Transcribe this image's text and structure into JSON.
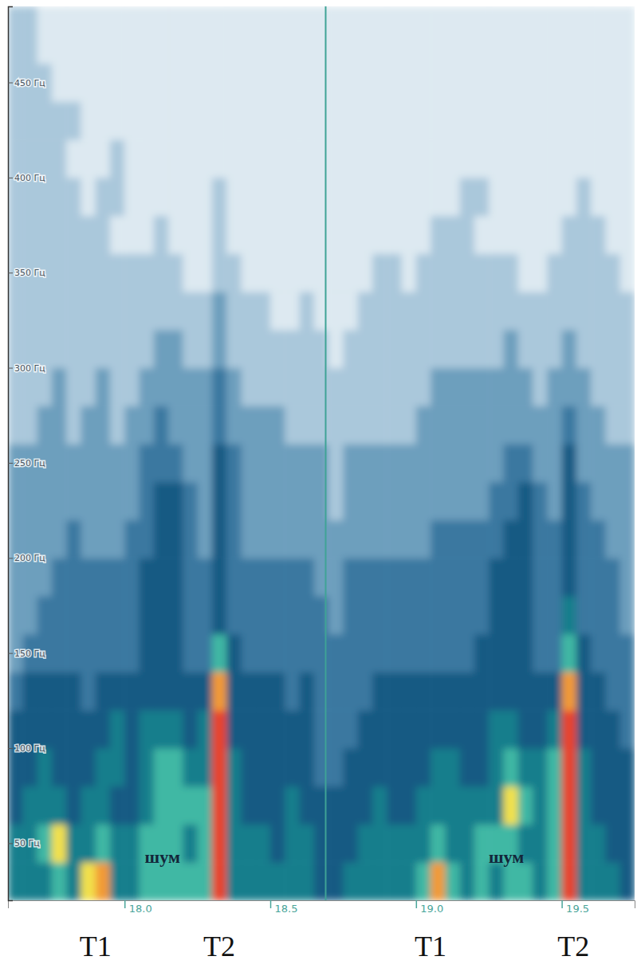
{
  "chart_data": {
    "type": "heatmap",
    "xlim": [
      17.6,
      19.75
    ],
    "ylim": [
      20,
      490
    ],
    "xticks": [
      {
        "value": 18,
        "label": "18.0"
      },
      {
        "value": 18.5,
        "label": "18.5"
      },
      {
        "value": 19,
        "label": "19.0"
      },
      {
        "value": 19.5,
        "label": "19.5"
      }
    ],
    "yticks": [
      {
        "value": 50,
        "label": "50 Гц"
      },
      {
        "value": 100,
        "label": "100 Гц"
      },
      {
        "value": 150,
        "label": "150 Гц"
      },
      {
        "value": 200,
        "label": "200 Гц"
      },
      {
        "value": 250,
        "label": "250 Гц"
      },
      {
        "value": 300,
        "label": "300 Гц"
      },
      {
        "value": 350,
        "label": "350 Гц"
      },
      {
        "value": 400,
        "label": "400 Гц"
      },
      {
        "value": 450,
        "label": "450 Гц"
      }
    ],
    "zlim": [
      0,
      10
    ],
    "x_edges": [
      17.6,
      17.65,
      17.7,
      17.75,
      17.8,
      17.85,
      17.9,
      17.95,
      18.0,
      18.05,
      18.1,
      18.15,
      18.2,
      18.25,
      18.3,
      18.35,
      18.4,
      18.45,
      18.5,
      18.55,
      18.6,
      18.65,
      18.7,
      18.75,
      18.8,
      18.85,
      18.9,
      18.95,
      19.0,
      19.05,
      19.1,
      19.15,
      19.2,
      19.25,
      19.3,
      19.35,
      19.4,
      19.45,
      19.5,
      19.55,
      19.6,
      19.65,
      19.7,
      19.75
    ],
    "y_edges": [
      20,
      40,
      60,
      80,
      100,
      120,
      140,
      160,
      180,
      200,
      220,
      240,
      260,
      280,
      300,
      320,
      340,
      360,
      380,
      400,
      420,
      440,
      460,
      480,
      490
    ],
    "z": [
      [
        6,
        6,
        6,
        7,
        6,
        8,
        9,
        6,
        6,
        7,
        7,
        7,
        7,
        7,
        10,
        6,
        6,
        6,
        6,
        6,
        6,
        5,
        5,
        6,
        6,
        6,
        6,
        6,
        7,
        9,
        7,
        6,
        7,
        6,
        7,
        7,
        6,
        7,
        10,
        6,
        6,
        6,
        5
      ],
      [
        6,
        6,
        7,
        8,
        6,
        6,
        7,
        6,
        6,
        7,
        7,
        7,
        6,
        7,
        10,
        6,
        6,
        6,
        5,
        6,
        6,
        5,
        5,
        5,
        6,
        6,
        6,
        6,
        6,
        7,
        6,
        6,
        7,
        7,
        7,
        6,
        6,
        7,
        10,
        6,
        6,
        5,
        5
      ],
      [
        5,
        6,
        6,
        6,
        5,
        6,
        6,
        5,
        5,
        6,
        7,
        7,
        7,
        7,
        10,
        6,
        5,
        5,
        5,
        6,
        5,
        5,
        5,
        5,
        5,
        6,
        5,
        5,
        6,
        6,
        6,
        6,
        6,
        6,
        8,
        7,
        6,
        7,
        10,
        6,
        5,
        5,
        5
      ],
      [
        5,
        5,
        6,
        5,
        5,
        5,
        6,
        6,
        5,
        6,
        7,
        7,
        6,
        6,
        10,
        6,
        5,
        5,
        5,
        5,
        5,
        4,
        4,
        5,
        5,
        5,
        5,
        5,
        5,
        6,
        6,
        5,
        5,
        6,
        7,
        6,
        6,
        7,
        10,
        6,
        5,
        5,
        5
      ],
      [
        5,
        5,
        5,
        5,
        5,
        5,
        5,
        6,
        5,
        6,
        6,
        6,
        5,
        6,
        10,
        5,
        5,
        5,
        5,
        5,
        5,
        4,
        4,
        4,
        5,
        5,
        5,
        5,
        5,
        5,
        5,
        5,
        5,
        6,
        6,
        5,
        5,
        6,
        10,
        5,
        5,
        5,
        4
      ],
      [
        4,
        5,
        5,
        5,
        5,
        4,
        5,
        5,
        5,
        5,
        5,
        5,
        5,
        5,
        9,
        5,
        5,
        5,
        5,
        4,
        5,
        4,
        4,
        4,
        4,
        5,
        5,
        5,
        5,
        5,
        5,
        5,
        5,
        5,
        5,
        5,
        5,
        5,
        9,
        5,
        5,
        4,
        4
      ],
      [
        3,
        4,
        4,
        4,
        4,
        4,
        4,
        4,
        4,
        5,
        5,
        5,
        4,
        4,
        7,
        5,
        4,
        4,
        4,
        4,
        4,
        4,
        4,
        4,
        4,
        4,
        4,
        4,
        4,
        4,
        4,
        4,
        5,
        5,
        5,
        5,
        4,
        4,
        7,
        5,
        4,
        4,
        4
      ],
      [
        3,
        3,
        4,
        4,
        4,
        4,
        4,
        4,
        4,
        5,
        5,
        5,
        4,
        4,
        5,
        4,
        4,
        4,
        4,
        4,
        4,
        4,
        3,
        4,
        4,
        4,
        4,
        4,
        4,
        4,
        4,
        4,
        4,
        5,
        5,
        5,
        4,
        4,
        6,
        4,
        4,
        4,
        3
      ],
      [
        3,
        3,
        3,
        4,
        4,
        4,
        4,
        4,
        4,
        5,
        5,
        5,
        4,
        4,
        5,
        4,
        4,
        4,
        4,
        4,
        4,
        3,
        3,
        4,
        4,
        4,
        4,
        4,
        4,
        4,
        4,
        4,
        4,
        5,
        5,
        5,
        4,
        4,
        5,
        4,
        4,
        4,
        3
      ],
      [
        3,
        3,
        3,
        3,
        4,
        3,
        3,
        3,
        4,
        4,
        5,
        5,
        4,
        3,
        5,
        4,
        3,
        3,
        3,
        3,
        3,
        3,
        3,
        3,
        3,
        3,
        3,
        3,
        3,
        4,
        4,
        4,
        4,
        4,
        5,
        5,
        4,
        4,
        5,
        4,
        4,
        3,
        3
      ],
      [
        3,
        3,
        3,
        3,
        3,
        3,
        3,
        3,
        3,
        4,
        5,
        5,
        4,
        3,
        5,
        4,
        3,
        3,
        3,
        3,
        3,
        3,
        2,
        3,
        3,
        3,
        3,
        3,
        3,
        3,
        3,
        3,
        3,
        4,
        4,
        5,
        4,
        3,
        5,
        4,
        3,
        3,
        3
      ],
      [
        3,
        3,
        3,
        3,
        3,
        3,
        3,
        3,
        3,
        4,
        4,
        4,
        3,
        3,
        5,
        4,
        3,
        3,
        3,
        3,
        3,
        3,
        2,
        3,
        3,
        3,
        3,
        3,
        3,
        3,
        3,
        3,
        3,
        3,
        4,
        4,
        3,
        3,
        5,
        3,
        3,
        3,
        3
      ],
      [
        2,
        2,
        3,
        3,
        2,
        3,
        3,
        2,
        3,
        3,
        4,
        3,
        3,
        3,
        4,
        3,
        3,
        3,
        3,
        2,
        2,
        2,
        2,
        2,
        2,
        2,
        2,
        2,
        3,
        3,
        3,
        3,
        3,
        3,
        3,
        3,
        3,
        3,
        4,
        3,
        3,
        2,
        2
      ],
      [
        2,
        2,
        2,
        3,
        2,
        2,
        3,
        2,
        2,
        3,
        3,
        3,
        3,
        3,
        4,
        3,
        2,
        2,
        2,
        2,
        2,
        2,
        2,
        2,
        2,
        2,
        2,
        2,
        2,
        3,
        3,
        3,
        3,
        3,
        3,
        3,
        2,
        3,
        3,
        3,
        2,
        2,
        2
      ],
      [
        2,
        2,
        2,
        2,
        2,
        2,
        2,
        2,
        2,
        2,
        3,
        3,
        2,
        2,
        3,
        2,
        2,
        2,
        2,
        2,
        2,
        2,
        1,
        2,
        2,
        2,
        2,
        2,
        2,
        2,
        2,
        2,
        2,
        2,
        3,
        2,
        2,
        2,
        3,
        2,
        2,
        2,
        2
      ],
      [
        2,
        2,
        2,
        2,
        2,
        2,
        2,
        2,
        2,
        2,
        2,
        2,
        2,
        2,
        3,
        2,
        2,
        2,
        1,
        1,
        2,
        1,
        1,
        1,
        2,
        2,
        2,
        2,
        2,
        2,
        2,
        2,
        2,
        2,
        2,
        2,
        2,
        2,
        2,
        2,
        2,
        2,
        2
      ],
      [
        2,
        2,
        2,
        2,
        2,
        2,
        2,
        2,
        2,
        2,
        2,
        2,
        1,
        1,
        2,
        2,
        1,
        1,
        1,
        1,
        1,
        1,
        1,
        1,
        1,
        2,
        2,
        1,
        2,
        2,
        2,
        2,
        2,
        2,
        2,
        1,
        1,
        2,
        2,
        2,
        2,
        2,
        1
      ],
      [
        2,
        2,
        2,
        2,
        2,
        2,
        2,
        1,
        1,
        1,
        2,
        1,
        1,
        1,
        2,
        1,
        1,
        1,
        1,
        1,
        1,
        1,
        1,
        1,
        1,
        1,
        1,
        1,
        1,
        2,
        2,
        2,
        1,
        1,
        1,
        1,
        1,
        1,
        2,
        2,
        2,
        1,
        1
      ],
      [
        2,
        2,
        2,
        2,
        2,
        1,
        2,
        2,
        1,
        1,
        1,
        1,
        1,
        1,
        2,
        1,
        1,
        1,
        1,
        1,
        1,
        1,
        1,
        1,
        1,
        1,
        1,
        1,
        1,
        1,
        1,
        2,
        2,
        1,
        1,
        1,
        1,
        1,
        1,
        2,
        1,
        1,
        1
      ],
      [
        2,
        2,
        2,
        2,
        1,
        1,
        1,
        2,
        1,
        1,
        1,
        1,
        1,
        1,
        1,
        1,
        1,
        1,
        1,
        1,
        1,
        1,
        1,
        1,
        1,
        1,
        1,
        1,
        1,
        1,
        1,
        1,
        1,
        1,
        1,
        1,
        1,
        1,
        1,
        1,
        1,
        1,
        1
      ],
      [
        2,
        2,
        2,
        2,
        2,
        1,
        1,
        1,
        1,
        1,
        1,
        1,
        1,
        1,
        1,
        1,
        1,
        1,
        1,
        1,
        1,
        1,
        1,
        1,
        1,
        1,
        1,
        1,
        1,
        1,
        1,
        1,
        1,
        1,
        1,
        1,
        1,
        1,
        1,
        1,
        1,
        1,
        1
      ],
      [
        2,
        2,
        2,
        1,
        1,
        1,
        1,
        1,
        1,
        1,
        1,
        1,
        1,
        1,
        1,
        1,
        1,
        1,
        1,
        1,
        1,
        1,
        1,
        1,
        1,
        1,
        1,
        1,
        1,
        1,
        1,
        1,
        1,
        1,
        1,
        1,
        1,
        1,
        1,
        1,
        1,
        1,
        1
      ],
      [
        2,
        2,
        1,
        1,
        1,
        1,
        1,
        1,
        1,
        1,
        1,
        1,
        1,
        1,
        1,
        1,
        1,
        1,
        1,
        1,
        1,
        1,
        1,
        1,
        1,
        1,
        1,
        1,
        1,
        1,
        1,
        1,
        1,
        1,
        1,
        1,
        1,
        1,
        1,
        1,
        1,
        1,
        1
      ],
      [
        2,
        2,
        1,
        1,
        1,
        1,
        1,
        1,
        1,
        1,
        1,
        1,
        1,
        1,
        1,
        1,
        1,
        1,
        1,
        1,
        1,
        1,
        1,
        1,
        1,
        1,
        1,
        1,
        1,
        1,
        1,
        1,
        1,
        1,
        1,
        1,
        1,
        1,
        1,
        1,
        1,
        1,
        1
      ]
    ],
    "cursor": 18.69,
    "markers": [
      {
        "text": "T1",
        "x": 17.9
      },
      {
        "text": "T2",
        "x": 18.325
      },
      {
        "text": "T1",
        "x": 19.05
      },
      {
        "text": "T2",
        "x": 19.54
      }
    ],
    "annotations": [
      {
        "text": "шум",
        "x": 18.13,
        "y": 42
      },
      {
        "text": "шум",
        "x": 19.31,
        "y": 42
      }
    ]
  }
}
